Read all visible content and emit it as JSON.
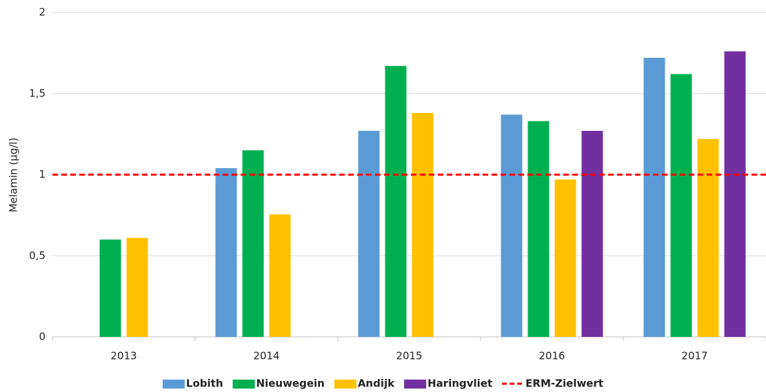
{
  "chart_data": {
    "type": "bar",
    "y_label": "Melamin (µg/l)",
    "categories": [
      "2013",
      "2014",
      "2015",
      "2016",
      "2017"
    ],
    "series": [
      {
        "name": "Lobith",
        "color": "#5b9bd5",
        "values": [
          null,
          1.04,
          1.27,
          1.37,
          1.72
        ]
      },
      {
        "name": "Nieuwegein",
        "color": "#00b050",
        "values": [
          0.6,
          1.15,
          1.67,
          1.33,
          1.62
        ]
      },
      {
        "name": "Andijk",
        "color": "#ffc000",
        "values": [
          0.61,
          0.755,
          1.38,
          0.97,
          1.22
        ]
      },
      {
        "name": "Haringvliet",
        "color": "#7030a0",
        "values": [
          null,
          null,
          null,
          1.27,
          1.76
        ]
      }
    ],
    "reference_line": {
      "name": "ERM-Zielwert",
      "value": 1,
      "color": "#ff0000"
    },
    "ylim": [
      0,
      2
    ],
    "yticks": [
      0,
      {
        "value": 0.5,
        "label": "0,5"
      },
      1,
      {
        "value": 1.5,
        "label": "1,5"
      },
      2
    ],
    "grid": true,
    "legend": "bottom"
  }
}
